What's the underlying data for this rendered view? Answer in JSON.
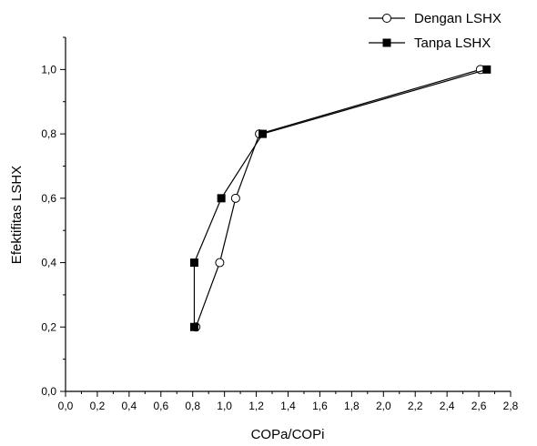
{
  "chart_data": {
    "type": "line",
    "xlabel": "COPa/COPi",
    "ylabel": "Efektifitas LSHX",
    "xlim": [
      0.0,
      2.8
    ],
    "ylim": [
      0.0,
      1.1
    ],
    "x_ticks": [
      "0,0",
      "0,2",
      "0,4",
      "0,6",
      "0,8",
      "1,0",
      "1,2",
      "1,4",
      "1,6",
      "1,8",
      "2,0",
      "2,2",
      "2,4",
      "2,6",
      "2,8"
    ],
    "y_ticks": [
      "0,0",
      "0,2",
      "0,4",
      "0,6",
      "0,8",
      "1,0"
    ],
    "grid": false,
    "legend_position": "top-right",
    "series": [
      {
        "name": "Dengan LSHX",
        "marker": "open-circle",
        "color": "#000000",
        "points": [
          {
            "x": 0.82,
            "y": 0.2
          },
          {
            "x": 0.97,
            "y": 0.4
          },
          {
            "x": 1.07,
            "y": 0.6
          },
          {
            "x": 1.22,
            "y": 0.8
          },
          {
            "x": 2.61,
            "y": 1.0
          }
        ]
      },
      {
        "name": "Tanpa LSHX",
        "marker": "filled-square",
        "color": "#000000",
        "points": [
          {
            "x": 0.81,
            "y": 0.2
          },
          {
            "x": 0.81,
            "y": 0.4
          },
          {
            "x": 0.98,
            "y": 0.6
          },
          {
            "x": 1.24,
            "y": 0.8
          },
          {
            "x": 2.65,
            "y": 1.0
          }
        ]
      }
    ]
  }
}
